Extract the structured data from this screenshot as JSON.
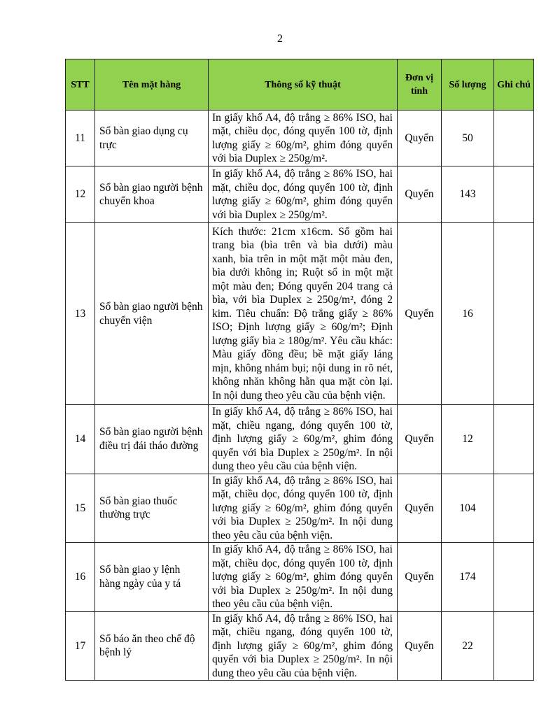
{
  "page_number": "2",
  "header_color": "#92d050",
  "columns": [
    "STT",
    "Tên mặt hàng",
    "Thông số kỹ thuật",
    "Đơn vị tính",
    "Số lượng",
    "Ghi chú"
  ],
  "rows": [
    {
      "stt": "11",
      "name": "Sổ bàn giao dụng cụ trực",
      "spec": "In giấy khổ A4, độ trắng ≥ 86% ISO, hai mặt, chiều dọc, đóng quyển 100 tờ, định lượng giấy ≥ 60g/m², ghim đóng quyển với bìa Duplex ≥ 250g/m².",
      "unit": "Quyển",
      "qty": "50",
      "note": ""
    },
    {
      "stt": "12",
      "name": "Sổ bàn giao người bệnh chuyển khoa",
      "spec": "In giấy khổ A4, độ trắng ≥ 86% ISO, hai mặt, chiều dọc, đóng quyển 100 tờ, định lượng giấy ≥ 60g/m², ghim đóng quyển với bìa Duplex ≥ 250g/m².",
      "unit": "Quyển",
      "qty": "143",
      "note": ""
    },
    {
      "stt": "13",
      "name": "Sổ bàn giao người bệnh chuyển viện",
      "spec": "Kích thước: 21cm x16cm. Sổ gồm hai trang bìa (bìa trên và bìa dưới) màu xanh, bìa trên in một mặt một màu đen, bìa dưới không in; Ruột sổ in một mặt một màu đen; Đóng quyển 204 trang cả bìa, với bìa Duplex ≥ 250g/m², đóng 2 kim. Tiêu chuẩn: Độ trắng giấy ≥ 86% ISO; Định lượng giấy ≥ 60g/m²; Định lượng giấy bìa ≥ 180g/m². Yêu cầu khác: Màu giấy đồng đều; bề mặt giấy láng mịn, không nhám bụi; nội dung in rõ nét, không nhăn không hằn qua mặt còn lại. In nội dung theo yêu cầu của bệnh viện.",
      "unit": "Quyển",
      "qty": "16",
      "note": ""
    },
    {
      "stt": "14",
      "name": "Sổ bàn giao người bệnh điều trị đái tháo đường",
      "spec": "In giấy khổ A4, độ trắng ≥ 86% ISO, hai mặt, chiều ngang, đóng quyển 100 tờ, định lượng giấy ≥ 60g/m², ghim đóng quyển với bìa Duplex ≥ 250g/m². In nội dung theo yêu cầu của bệnh viện.",
      "unit": "Quyển",
      "qty": "12",
      "note": ""
    },
    {
      "stt": "15",
      "name": "Sổ bàn giao thuốc thường trực",
      "spec": "In giấy khổ A4, độ trắng ≥ 86% ISO, hai mặt, chiều dọc, đóng quyển 100 tờ, định lượng giấy ≥ 60g/m², ghim đóng quyển với bìa Duplex ≥ 250g/m². In nội dung theo yêu cầu của bệnh viện.",
      "unit": "Quyển",
      "qty": "104",
      "note": ""
    },
    {
      "stt": "16",
      "name": "Sổ bàn giao y lệnh hàng ngày của y tá",
      "spec": "In giấy khổ A4, độ trắng ≥ 86% ISO, hai mặt, chiều dọc, đóng quyển 100 tờ, định lượng giấy ≥ 60g/m², ghim đóng quyển với bìa Duplex ≥ 250g/m². In nội dung theo yêu cầu của bệnh viện.",
      "unit": "Quyển",
      "qty": "174",
      "note": ""
    },
    {
      "stt": "17",
      "name": "Sổ báo ăn theo chế độ bệnh lý",
      "spec": "In giấy khổ A4, độ trắng ≥ 86% ISO, hai mặt, chiều ngang, đóng quyển 100 tờ, định lượng giấy ≥ 60g/m², ghim đóng quyển với bìa Duplex ≥ 250g/m². In nội dung theo yêu cầu của bệnh viện.",
      "unit": "Quyển",
      "qty": "22",
      "note": ""
    }
  ]
}
